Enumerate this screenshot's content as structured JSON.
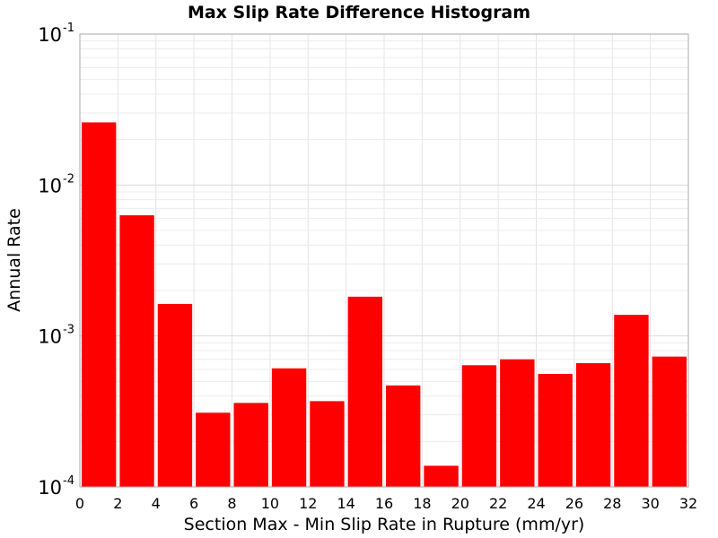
{
  "chart_data": {
    "type": "bar",
    "title": "Max Slip Rate Difference Histogram",
    "xlabel": "Section Max - Min Slip Rate in Rupture (mm/yr)",
    "ylabel": "Annual Rate",
    "xlim": [
      0,
      32
    ],
    "ylim": [
      0.0001,
      0.1
    ],
    "yscale": "log",
    "grid": true,
    "legend": "none",
    "bar_color": "#ff0000",
    "bin_width": 2,
    "x_ticks": [
      "0",
      "2",
      "4",
      "6",
      "8",
      "10",
      "12",
      "14",
      "16",
      "18",
      "20",
      "22",
      "24",
      "26",
      "28",
      "30",
      "32"
    ],
    "y_ticks": [
      {
        "base": "10",
        "exp": "-4",
        "value": 0.0001
      },
      {
        "base": "10",
        "exp": "-3",
        "value": 0.001
      },
      {
        "base": "10",
        "exp": "-2",
        "value": 0.01
      },
      {
        "base": "10",
        "exp": "-1",
        "value": 0.1
      }
    ],
    "x": [
      1,
      3,
      5,
      7,
      9,
      11,
      13,
      15,
      17,
      19,
      21,
      23,
      25,
      27,
      29,
      31
    ],
    "values": [
      0.026,
      0.0063,
      0.00163,
      0.00031,
      0.00036,
      0.00061,
      0.00037,
      0.00182,
      0.00047,
      0.000138,
      0.00064,
      0.0007,
      0.00056,
      0.00066,
      0.00138,
      0.00073
    ]
  }
}
